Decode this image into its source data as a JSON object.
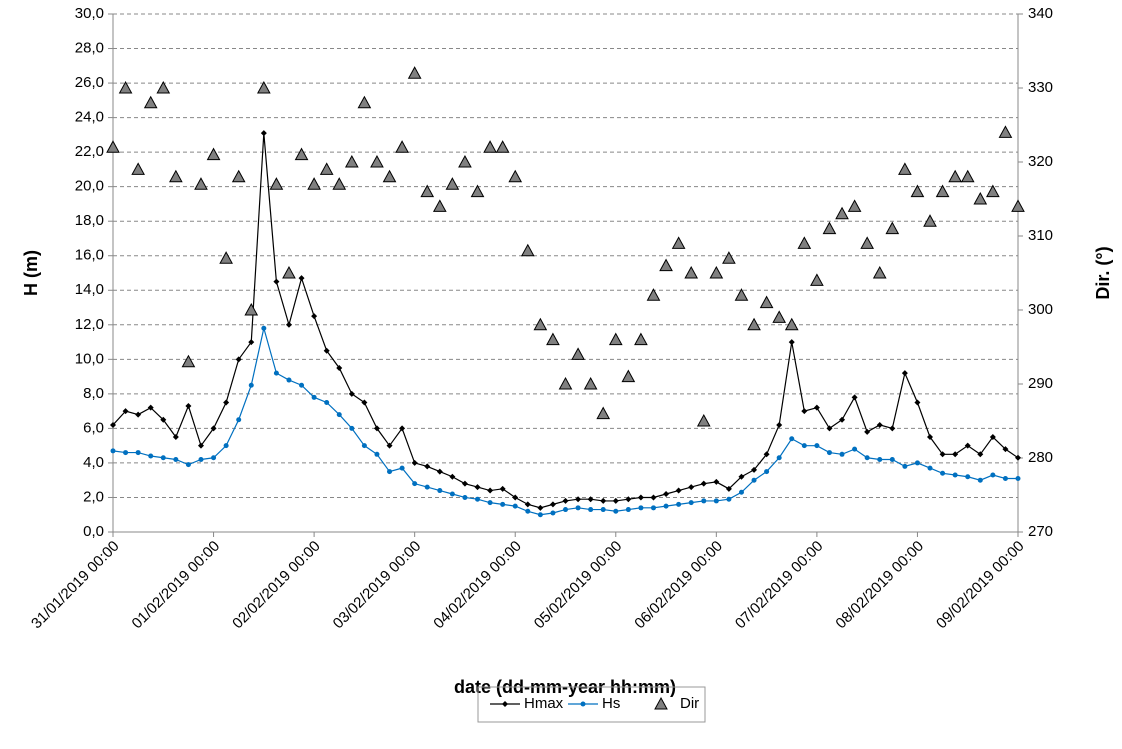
{
  "chart_data": {
    "type": "line",
    "x_label": "date (dd-mm-year hh:mm)",
    "y_label": "H (m)",
    "y2_label": "Dir. (°)",
    "x": [
      "31/01/2019 00:00",
      "31/01/2019 03:00",
      "31/01/2019 06:00",
      "31/01/2019 09:00",
      "31/01/2019 12:00",
      "31/01/2019 15:00",
      "31/01/2019 18:00",
      "31/01/2019 21:00",
      "01/02/2019 00:00",
      "01/02/2019 03:00",
      "01/02/2019 06:00",
      "01/02/2019 09:00",
      "01/02/2019 12:00",
      "01/02/2019 15:00",
      "01/02/2019 18:00",
      "01/02/2019 21:00",
      "02/02/2019 00:00",
      "02/02/2019 03:00",
      "02/02/2019 06:00",
      "02/02/2019 09:00",
      "02/02/2019 12:00",
      "02/02/2019 15:00",
      "02/02/2019 18:00",
      "02/02/2019 21:00",
      "03/02/2019 00:00",
      "03/02/2019 03:00",
      "03/02/2019 06:00",
      "03/02/2019 09:00",
      "03/02/2019 12:00",
      "03/02/2019 15:00",
      "03/02/2019 18:00",
      "03/02/2019 21:00",
      "04/02/2019 00:00",
      "04/02/2019 03:00",
      "04/02/2019 06:00",
      "04/02/2019 09:00",
      "04/02/2019 12:00",
      "04/02/2019 15:00",
      "04/02/2019 18:00",
      "04/02/2019 21:00",
      "05/02/2019 00:00",
      "05/02/2019 03:00",
      "05/02/2019 06:00",
      "05/02/2019 09:00",
      "05/02/2019 12:00",
      "05/02/2019 15:00",
      "05/02/2019 18:00",
      "05/02/2019 21:00",
      "06/02/2019 00:00",
      "06/02/2019 03:00",
      "06/02/2019 06:00",
      "06/02/2019 09:00",
      "06/02/2019 12:00",
      "06/02/2019 15:00",
      "06/02/2019 18:00",
      "06/02/2019 21:00",
      "07/02/2019 00:00",
      "07/02/2019 03:00",
      "07/02/2019 06:00",
      "07/02/2019 09:00",
      "07/02/2019 12:00",
      "07/02/2019 15:00",
      "07/02/2019 18:00",
      "07/02/2019 21:00",
      "08/02/2019 00:00",
      "08/02/2019 03:00",
      "08/02/2019 06:00",
      "08/02/2019 09:00",
      "08/02/2019 12:00",
      "08/02/2019 15:00",
      "08/02/2019 18:00",
      "08/02/2019 21:00",
      "09/02/2019 00:00"
    ],
    "xlim": [
      "31/01/2019 00:00",
      "09/02/2019 00:00"
    ],
    "xticks": [
      "31/01/2019 00:00",
      "01/02/2019 00:00",
      "02/02/2019 00:00",
      "03/02/2019 00:00",
      "04/02/2019 00:00",
      "05/02/2019 00:00",
      "06/02/2019 00:00",
      "07/02/2019 00:00",
      "08/02/2019 00:00",
      "09/02/2019 00:00"
    ],
    "ylim": [
      0,
      30
    ],
    "yticks": [
      {
        "value": 0,
        "label": "0,0"
      },
      {
        "value": 2,
        "label": "2,0"
      },
      {
        "value": 4,
        "label": "4,0"
      },
      {
        "value": 6,
        "label": "6,0"
      },
      {
        "value": 8,
        "label": "8,0"
      },
      {
        "value": 10,
        "label": "10,0"
      },
      {
        "value": 12,
        "label": "12,0"
      },
      {
        "value": 14,
        "label": "14,0"
      },
      {
        "value": 16,
        "label": "16,0"
      },
      {
        "value": 18,
        "label": "18,0"
      },
      {
        "value": 20,
        "label": "20,0"
      },
      {
        "value": 22,
        "label": "22,0"
      },
      {
        "value": 24,
        "label": "24,0"
      },
      {
        "value": 26,
        "label": "26,0"
      },
      {
        "value": 28,
        "label": "28,0"
      },
      {
        "value": 30,
        "label": "30,0"
      }
    ],
    "y2lim": [
      270,
      340
    ],
    "y2ticks": [
      270,
      280,
      290,
      300,
      310,
      320,
      330,
      340
    ],
    "grid": true,
    "legend": "bottom",
    "series": [
      {
        "name": "Hmax",
        "color": "#000000",
        "marker": "diamond",
        "values": [
          6.2,
          7.0,
          6.8,
          7.2,
          6.5,
          5.5,
          7.3,
          5.0,
          6.0,
          7.5,
          10.0,
          11.0,
          23.1,
          14.5,
          12.0,
          14.7,
          12.5,
          10.5,
          9.5,
          8.0,
          7.5,
          6.0,
          5.0,
          6.0,
          4.0,
          3.8,
          3.5,
          3.2,
          2.8,
          2.6,
          2.4,
          2.5,
          2.0,
          1.6,
          1.4,
          1.6,
          1.8,
          1.9,
          1.9,
          1.8,
          1.8,
          1.9,
          2.0,
          2.0,
          2.2,
          2.4,
          2.6,
          2.8,
          2.9,
          2.5,
          3.2,
          3.6,
          4.5,
          6.2,
          11.0,
          7.0,
          7.2,
          6.0,
          6.5,
          7.8,
          5.8,
          6.2,
          6.0,
          9.2,
          7.5,
          5.5,
          4.5,
          4.5,
          5.0,
          4.5,
          5.5,
          4.8,
          4.3
        ]
      },
      {
        "name": "Hs",
        "color": "#0070c0",
        "marker": "circle",
        "values": [
          4.7,
          4.6,
          4.6,
          4.4,
          4.3,
          4.2,
          3.9,
          4.2,
          4.3,
          5.0,
          6.5,
          8.5,
          11.8,
          9.2,
          8.8,
          8.5,
          7.8,
          7.5,
          6.8,
          6.0,
          5.0,
          4.5,
          3.5,
          3.7,
          2.8,
          2.6,
          2.4,
          2.2,
          2.0,
          1.9,
          1.7,
          1.6,
          1.5,
          1.2,
          1.0,
          1.1,
          1.3,
          1.4,
          1.3,
          1.3,
          1.2,
          1.3,
          1.4,
          1.4,
          1.5,
          1.6,
          1.7,
          1.8,
          1.8,
          1.9,
          2.3,
          3.0,
          3.5,
          4.3,
          5.4,
          5.0,
          5.0,
          4.6,
          4.5,
          4.8,
          4.3,
          4.2,
          4.2,
          3.8,
          4.0,
          3.7,
          3.4,
          3.3,
          3.2,
          3.0,
          3.3,
          3.1,
          3.1
        ]
      },
      {
        "name": "Dir",
        "color": "#808080",
        "marker": "triangle",
        "type": "scatter",
        "axis": "y2",
        "values": [
          322,
          330,
          319,
          328,
          330,
          318,
          293,
          317,
          321,
          307,
          318,
          300,
          330,
          317,
          305,
          321,
          317,
          319,
          317,
          320,
          328,
          320,
          318,
          322,
          332,
          316,
          314,
          317,
          320,
          316,
          322,
          322,
          318,
          308,
          298,
          296,
          290,
          294,
          290,
          286,
          296,
          291,
          296,
          302,
          306,
          309,
          305,
          285,
          305,
          307,
          302,
          298,
          301,
          299,
          298,
          309,
          304,
          311,
          313,
          314,
          309,
          305,
          311,
          319,
          316,
          312,
          316,
          318,
          318,
          315,
          316,
          324,
          314
        ]
      }
    ]
  }
}
